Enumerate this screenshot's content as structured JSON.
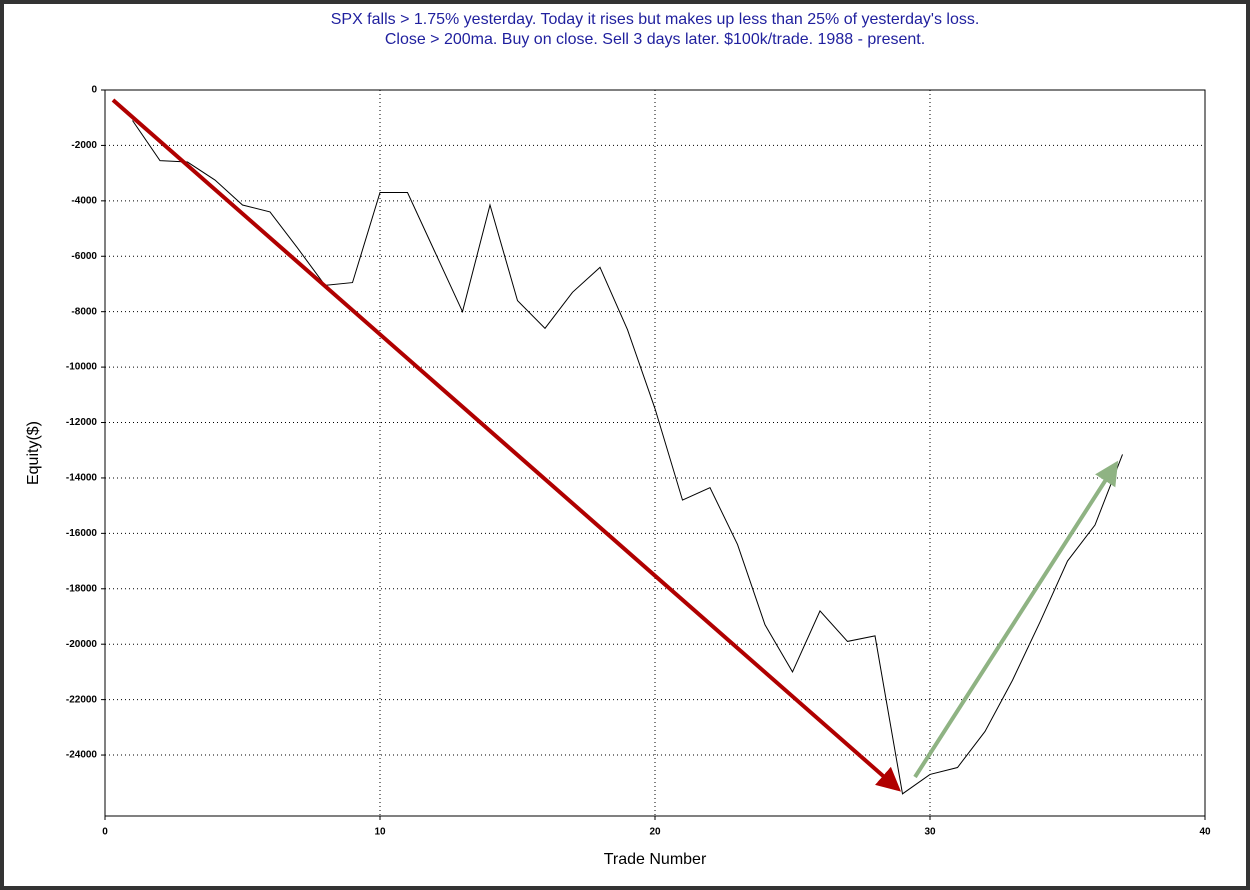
{
  "chart_data": {
    "type": "line",
    "title": [
      "SPX falls > 1.75% yesterday. Today it rises but makes up less than 25% of yesterday's loss.",
      "Close > 200ma. Buy on close. Sell 3 days later. $100k/trade. 1988 - present."
    ],
    "xlabel": "Trade Number",
    "ylabel": "Equity($)",
    "xlim": [
      0,
      40
    ],
    "xticks": [
      0,
      10,
      20,
      30,
      40
    ],
    "ylim": [
      -26200,
      0
    ],
    "yticks": [
      0,
      -2000,
      -4000,
      -6000,
      -8000,
      -10000,
      -12000,
      -14000,
      -16000,
      -18000,
      -20000,
      -22000,
      -24000
    ],
    "grid": true,
    "series": [
      {
        "color": "#000000",
        "x": [
          1,
          2,
          3,
          4,
          5,
          6,
          7,
          8,
          9,
          10,
          11,
          12,
          13,
          14,
          15,
          16,
          17,
          18,
          19,
          20,
          21,
          22,
          23,
          24,
          25,
          26,
          27,
          28,
          29,
          30,
          31,
          32,
          33,
          34,
          35,
          36,
          37
        ],
        "values": [
          -1100,
          -2550,
          -2600,
          -3250,
          -4150,
          -4400,
          -5700,
          -7050,
          -6950,
          -3700,
          -3700,
          -5850,
          -8000,
          -4150,
          -7600,
          -8600,
          -7300,
          -6400,
          -8650,
          -11500,
          -14800,
          -14350,
          -16400,
          -19300,
          -21000,
          -18800,
          -19900,
          -19700,
          -25400,
          -24700,
          -24450,
          -23150,
          -21300,
          -19200,
          -17000,
          -15700,
          -13150
        ]
      }
    ]
  }
}
